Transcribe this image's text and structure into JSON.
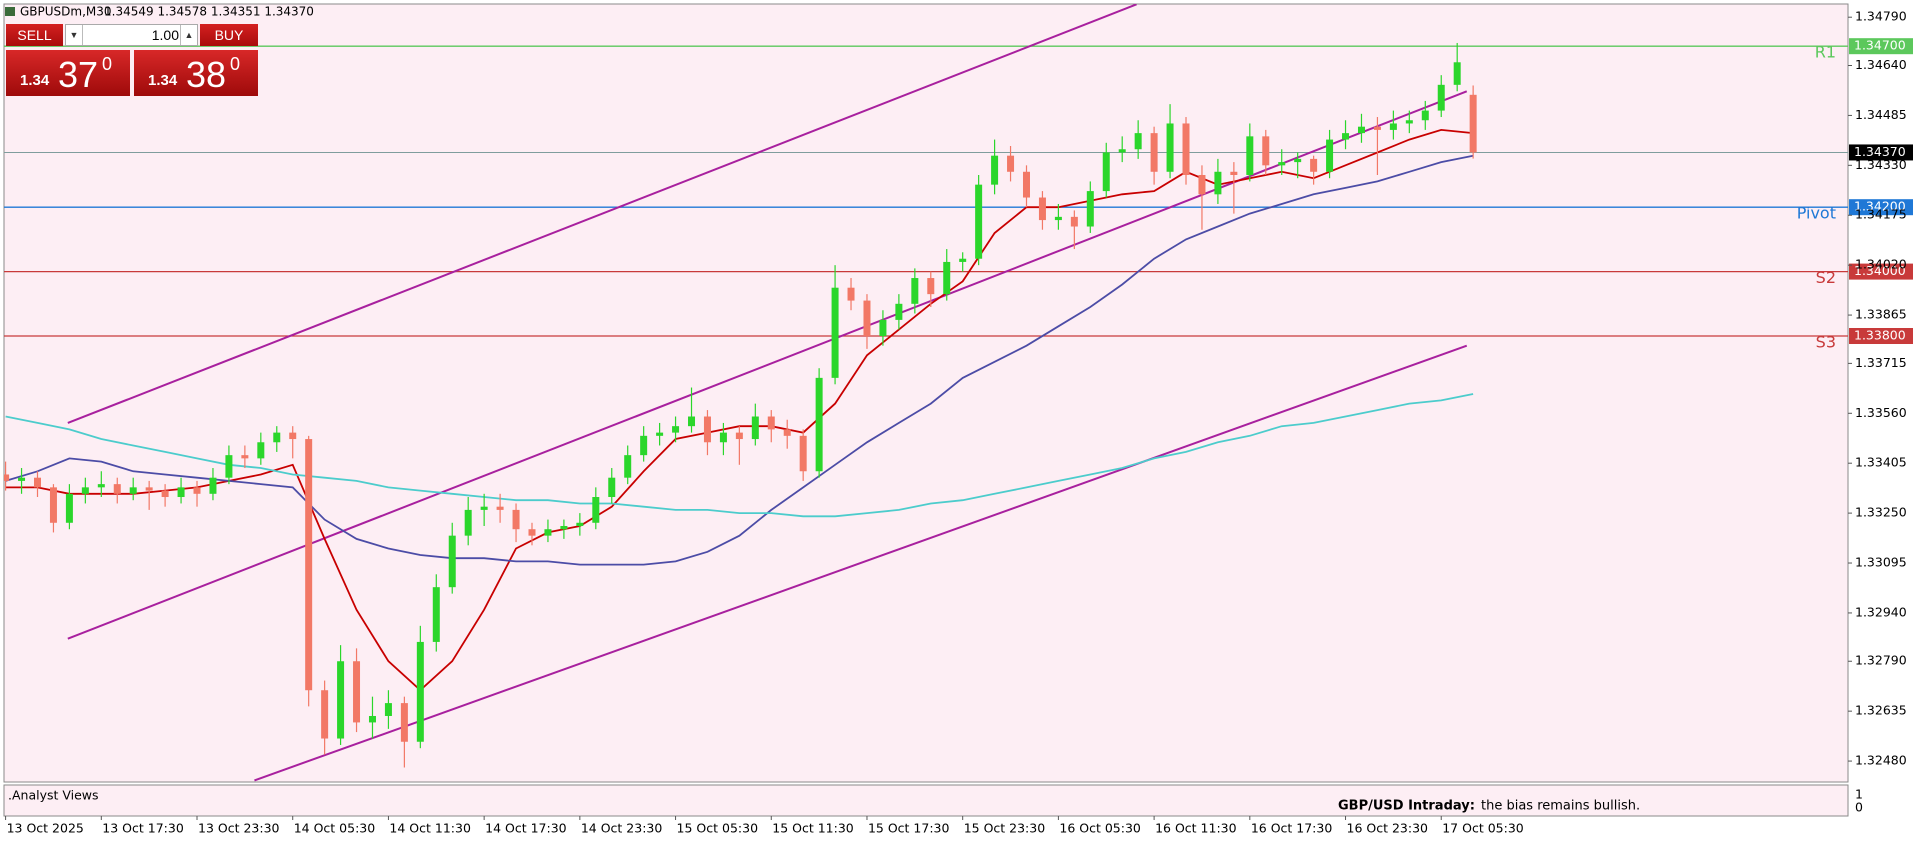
{
  "header": {
    "symbol": "GBPUSDm,M30",
    "ohlc": "1.34549 1.34578 1.34351 1.34370"
  },
  "trade_panel": {
    "sell": "SELL",
    "buy": "BUY",
    "lot": "1.00",
    "bid": {
      "big": "1.34",
      "main": "37",
      "sup": "0"
    },
    "ask": {
      "big": "1.34",
      "main": "38",
      "sup": "0"
    }
  },
  "chart_data": {
    "type": "candlestick",
    "up_color": "#2bd62b",
    "down_color": "#f27866",
    "background": "#fdeef4",
    "xlim": [
      -0.1,
      115.5
    ],
    "ylim": [
      1.32415,
      1.34831
    ],
    "xticks": [
      {
        "value": 0,
        "label": "13 Oct 2025"
      },
      {
        "value": 6,
        "label": "13 Oct 17:30"
      },
      {
        "value": 12,
        "label": "13 Oct 23:30"
      },
      {
        "value": 18,
        "label": "14 Oct 05:30"
      },
      {
        "value": 24,
        "label": "14 Oct 11:30"
      },
      {
        "value": 30,
        "label": "14 Oct 17:30"
      },
      {
        "value": 36,
        "label": "14 Oct 23:30"
      },
      {
        "value": 42,
        "label": "15 Oct 05:30"
      },
      {
        "value": 48,
        "label": "15 Oct 11:30"
      },
      {
        "value": 54,
        "label": "15 Oct 17:30"
      },
      {
        "value": 60,
        "label": "15 Oct 23:30"
      },
      {
        "value": 66,
        "label": "16 Oct 05:30"
      },
      {
        "value": 72,
        "label": "16 Oct 11:30"
      },
      {
        "value": 78,
        "label": "16 Oct 17:30"
      },
      {
        "value": 84,
        "label": "16 Oct 23:30"
      },
      {
        "value": 90,
        "label": "17 Oct 05:30"
      }
    ],
    "yticks": [
      {
        "value": 1.3479,
        "label": "1.34790"
      },
      {
        "value": 1.3464,
        "label": "1.34640"
      },
      {
        "value": 1.34485,
        "label": "1.34485"
      },
      {
        "value": 1.3433,
        "label": "1.34330"
      },
      {
        "value": 1.34175,
        "label": "1.34175"
      },
      {
        "value": 1.3402,
        "label": "1.34020"
      },
      {
        "value": 1.33865,
        "label": "1.33865"
      },
      {
        "value": 1.33715,
        "label": "1.33715"
      },
      {
        "value": 1.3356,
        "label": "1.33560"
      },
      {
        "value": 1.33405,
        "label": "1.33405"
      },
      {
        "value": 1.3325,
        "label": "1.33250"
      },
      {
        "value": 1.33095,
        "label": "1.33095"
      },
      {
        "value": 1.3294,
        "label": "1.32940"
      },
      {
        "value": 1.3279,
        "label": "1.32790"
      },
      {
        "value": 1.32635,
        "label": "1.32635"
      },
      {
        "value": 1.3248,
        "label": "1.32480"
      }
    ],
    "candles": [
      [
        1.3337,
        1.3341,
        1.3332,
        1.3335
      ],
      [
        1.3335,
        1.3339,
        1.3331,
        1.3336
      ],
      [
        1.3336,
        1.3338,
        1.333,
        1.3333
      ],
      [
        1.3333,
        1.3334,
        1.3319,
        1.3322
      ],
      [
        1.3322,
        1.3334,
        1.332,
        1.3331
      ],
      [
        1.3331,
        1.3336,
        1.3328,
        1.3333
      ],
      [
        1.3333,
        1.3338,
        1.333,
        1.3334
      ],
      [
        1.3334,
        1.3336,
        1.3328,
        1.3331
      ],
      [
        1.3331,
        1.3336,
        1.3329,
        1.3333
      ],
      [
        1.3333,
        1.3335,
        1.3326,
        1.3332
      ],
      [
        1.3332,
        1.3334,
        1.3327,
        1.333
      ],
      [
        1.333,
        1.3336,
        1.3328,
        1.3333
      ],
      [
        1.3333,
        1.3335,
        1.3327,
        1.3331
      ],
      [
        1.3331,
        1.3339,
        1.3329,
        1.3336
      ],
      [
        1.3336,
        1.3346,
        1.3334,
        1.3343
      ],
      [
        1.3343,
        1.3346,
        1.3339,
        1.3342
      ],
      [
        1.3342,
        1.335,
        1.334,
        1.3347
      ],
      [
        1.3347,
        1.3352,
        1.3344,
        1.335
      ],
      [
        1.335,
        1.3352,
        1.3342,
        1.3348
      ],
      [
        1.3348,
        1.3349,
        1.3265,
        1.327
      ],
      [
        1.327,
        1.3273,
        1.325,
        1.3255
      ],
      [
        1.3255,
        1.3284,
        1.3253,
        1.3279
      ],
      [
        1.3279,
        1.3283,
        1.3257,
        1.326
      ],
      [
        1.326,
        1.3268,
        1.3255,
        1.3262
      ],
      [
        1.3262,
        1.327,
        1.3258,
        1.3266
      ],
      [
        1.3266,
        1.3268,
        1.3246,
        1.3254
      ],
      [
        1.3254,
        1.329,
        1.3252,
        1.3285
      ],
      [
        1.3285,
        1.3306,
        1.3282,
        1.3302
      ],
      [
        1.3302,
        1.3322,
        1.33,
        1.3318
      ],
      [
        1.3318,
        1.333,
        1.3315,
        1.3326
      ],
      [
        1.3326,
        1.3331,
        1.3321,
        1.3327
      ],
      [
        1.3327,
        1.3331,
        1.3322,
        1.3326
      ],
      [
        1.3326,
        1.3328,
        1.3316,
        1.332
      ],
      [
        1.332,
        1.3322,
        1.3315,
        1.3318
      ],
      [
        1.3318,
        1.3323,
        1.3316,
        1.332
      ],
      [
        1.332,
        1.3323,
        1.3317,
        1.3321
      ],
      [
        1.3321,
        1.3325,
        1.3318,
        1.3322
      ],
      [
        1.3322,
        1.3333,
        1.332,
        1.333
      ],
      [
        1.333,
        1.3339,
        1.3328,
        1.3336
      ],
      [
        1.3336,
        1.3346,
        1.3334,
        1.3343
      ],
      [
        1.3343,
        1.3352,
        1.3341,
        1.3349
      ],
      [
        1.3349,
        1.3353,
        1.3346,
        1.335
      ],
      [
        1.335,
        1.3355,
        1.3347,
        1.3352
      ],
      [
        1.3352,
        1.3364,
        1.335,
        1.3355
      ],
      [
        1.3355,
        1.3357,
        1.3343,
        1.3347
      ],
      [
        1.3347,
        1.3353,
        1.3343,
        1.335
      ],
      [
        1.335,
        1.3352,
        1.334,
        1.3348
      ],
      [
        1.3348,
        1.3359,
        1.3346,
        1.3355
      ],
      [
        1.3355,
        1.3357,
        1.3347,
        1.3351
      ],
      [
        1.3351,
        1.3354,
        1.3345,
        1.3349
      ],
      [
        1.3349,
        1.3351,
        1.3335,
        1.3338
      ],
      [
        1.3338,
        1.337,
        1.3336,
        1.3367
      ],
      [
        1.3367,
        1.3402,
        1.3365,
        1.3395
      ],
      [
        1.3395,
        1.3398,
        1.3388,
        1.3391
      ],
      [
        1.3391,
        1.3393,
        1.3376,
        1.338
      ],
      [
        1.338,
        1.3388,
        1.3377,
        1.3385
      ],
      [
        1.3385,
        1.3393,
        1.3382,
        1.339
      ],
      [
        1.339,
        1.3401,
        1.3387,
        1.3398
      ],
      [
        1.3398,
        1.34,
        1.3389,
        1.3393
      ],
      [
        1.3393,
        1.3407,
        1.3391,
        1.3403
      ],
      [
        1.3403,
        1.3406,
        1.34,
        1.3404
      ],
      [
        1.3404,
        1.343,
        1.3402,
        1.3427
      ],
      [
        1.3427,
        1.3441,
        1.3424,
        1.3436
      ],
      [
        1.3436,
        1.3439,
        1.3428,
        1.3431
      ],
      [
        1.3431,
        1.3433,
        1.342,
        1.3423
      ],
      [
        1.3423,
        1.3425,
        1.3413,
        1.3416
      ],
      [
        1.3416,
        1.3421,
        1.3413,
        1.3417
      ],
      [
        1.3417,
        1.3419,
        1.3407,
        1.3414
      ],
      [
        1.3414,
        1.3428,
        1.3412,
        1.3425
      ],
      [
        1.3425,
        1.344,
        1.3423,
        1.3437
      ],
      [
        1.3437,
        1.3442,
        1.3434,
        1.3438
      ],
      [
        1.3438,
        1.3447,
        1.3435,
        1.3443
      ],
      [
        1.3443,
        1.3445,
        1.3427,
        1.3431
      ],
      [
        1.3431,
        1.3452,
        1.3429,
        1.3446
      ],
      [
        1.3446,
        1.3448,
        1.3427,
        1.343
      ],
      [
        1.343,
        1.3433,
        1.3413,
        1.3424
      ],
      [
        1.3424,
        1.3435,
        1.3421,
        1.3431
      ],
      [
        1.3431,
        1.3434,
        1.3418,
        1.343
      ],
      [
        1.343,
        1.3446,
        1.3428,
        1.3442
      ],
      [
        1.3442,
        1.3444,
        1.343,
        1.3433
      ],
      [
        1.3433,
        1.3438,
        1.343,
        1.3434
      ],
      [
        1.3434,
        1.3437,
        1.3429,
        1.3435
      ],
      [
        1.3435,
        1.3436,
        1.3427,
        1.3431
      ],
      [
        1.3431,
        1.3444,
        1.3429,
        1.3441
      ],
      [
        1.3441,
        1.3447,
        1.3438,
        1.3443
      ],
      [
        1.3443,
        1.3449,
        1.344,
        1.3445
      ],
      [
        1.3445,
        1.3448,
        1.343,
        1.3444
      ],
      [
        1.3444,
        1.345,
        1.3441,
        1.3446
      ],
      [
        1.3446,
        1.345,
        1.3443,
        1.3447
      ],
      [
        1.3447,
        1.3453,
        1.3444,
        1.345
      ],
      [
        1.345,
        1.3461,
        1.3448,
        1.3458
      ],
      [
        1.3458,
        1.3471,
        1.3456,
        1.3465
      ],
      [
        1.34549,
        1.34578,
        1.34351,
        1.3437
      ]
    ],
    "ma_x": [
      0,
      2,
      4,
      6,
      8,
      10,
      12,
      14,
      16,
      18,
      20,
      22,
      24,
      26,
      28,
      30,
      32,
      34,
      36,
      38,
      40,
      42,
      44,
      46,
      48,
      50,
      52,
      54,
      56,
      58,
      60,
      62,
      64,
      66,
      68,
      70,
      72,
      74,
      76,
      78,
      80,
      82,
      84,
      86,
      88,
      90,
      92
    ],
    "series": [
      {
        "color": "#c80000",
        "values": [
          1.3333,
          1.3333,
          1.3331,
          1.3331,
          1.3331,
          1.3332,
          1.3333,
          1.3335,
          1.3337,
          1.334,
          1.3317,
          1.3295,
          1.3279,
          1.327,
          1.3279,
          1.3295,
          1.3314,
          1.3319,
          1.3321,
          1.3327,
          1.3338,
          1.3348,
          1.335,
          1.3352,
          1.3352,
          1.335,
          1.3359,
          1.3374,
          1.3382,
          1.339,
          1.3397,
          1.3412,
          1.342,
          1.342,
          1.3422,
          1.3424,
          1.3425,
          1.3431,
          1.3427,
          1.3429,
          1.3431,
          1.3429,
          1.3433,
          1.3437,
          1.3441,
          1.3444,
          1.3443
        ]
      },
      {
        "color": "#4c4ca6",
        "values": [
          1.3335,
          1.3338,
          1.3342,
          1.3341,
          1.3338,
          1.3337,
          1.3336,
          1.3335,
          1.3334,
          1.3333,
          1.3323,
          1.3317,
          1.3314,
          1.3312,
          1.3311,
          1.3311,
          1.331,
          1.331,
          1.3309,
          1.3309,
          1.3309,
          1.331,
          1.3313,
          1.3318,
          1.3326,
          1.3333,
          1.334,
          1.3347,
          1.3353,
          1.3359,
          1.3367,
          1.3372,
          1.3377,
          1.3383,
          1.3389,
          1.3396,
          1.3404,
          1.341,
          1.3414,
          1.3418,
          1.3421,
          1.3424,
          1.3426,
          1.3428,
          1.3431,
          1.3434,
          1.3436
        ]
      },
      {
        "color": "#4ccccc",
        "values": [
          1.3355,
          1.3353,
          1.3351,
          1.3348,
          1.3346,
          1.3344,
          1.3342,
          1.334,
          1.3339,
          1.3337,
          1.3336,
          1.3335,
          1.3333,
          1.3332,
          1.3331,
          1.333,
          1.3329,
          1.3329,
          1.3328,
          1.3328,
          1.3327,
          1.3326,
          1.3326,
          1.3325,
          1.3325,
          1.3324,
          1.3324,
          1.3325,
          1.3326,
          1.3328,
          1.3329,
          1.3331,
          1.3333,
          1.3335,
          1.3337,
          1.3339,
          1.3342,
          1.3344,
          1.3347,
          1.3349,
          1.3352,
          1.3353,
          1.3355,
          1.3357,
          1.3359,
          1.336,
          1.3362
        ]
      }
    ],
    "trendlines": [
      {
        "color": "#a8209e",
        "x": [
          3.9,
          70.9
        ],
        "values": [
          1.3353,
          1.3483
        ]
      },
      {
        "color": "#a8209e",
        "x": [
          3.9,
          91.6
        ],
        "values": [
          1.3286,
          1.3456
        ]
      },
      {
        "color": "#a8209e",
        "x": [
          15.6,
          91.6
        ],
        "values": [
          1.3242,
          1.3377
        ]
      }
    ],
    "levels": [
      {
        "name": "R1",
        "value": 1.347,
        "label": "1.34700",
        "color": "#5cc85c"
      },
      {
        "name": "Pivot",
        "value": 1.342,
        "label": "1.34200",
        "color": "#1f78d6"
      },
      {
        "name": "S2",
        "value": 1.34,
        "label": "1.34000",
        "color": "#c83a3a"
      },
      {
        "name": "S3",
        "value": 1.338,
        "label": "1.33800",
        "color": "#c83a3a"
      }
    ],
    "current_price": {
      "value": 1.3437,
      "label": "1.34370",
      "color": "#7f9d9d"
    },
    "indicator": {
      "title": ".Analyst Views",
      "yticks": [
        1,
        0
      ],
      "note_label": "GBP/USD Intraday:",
      "note_text": "the bias remains bullish."
    }
  }
}
